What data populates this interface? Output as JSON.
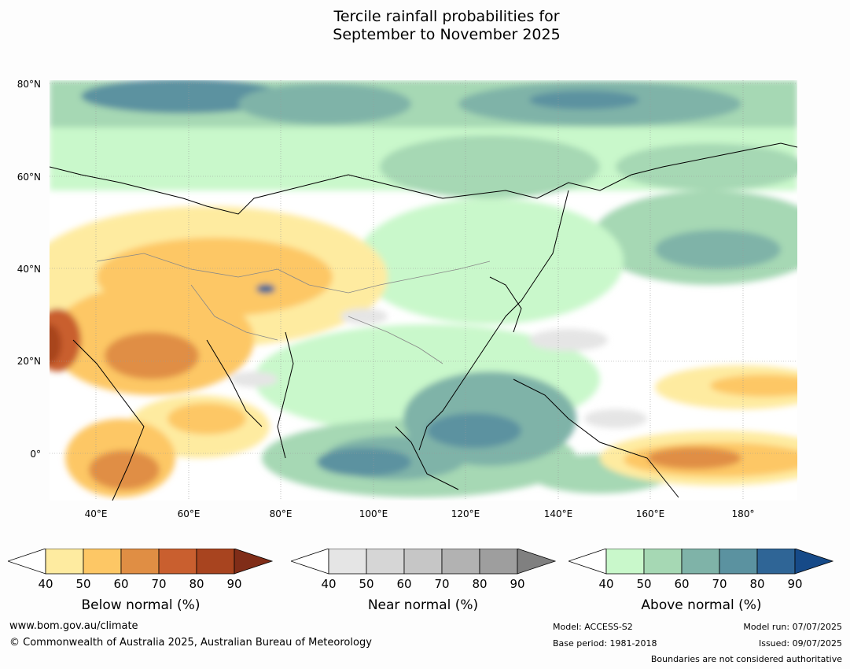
{
  "title": {
    "line1": "Tercile rainfall probabilities for",
    "line2": "September to November 2025"
  },
  "map": {
    "lat_labels": [
      "80°N",
      "60°N",
      "40°N",
      "20°N",
      "0°"
    ],
    "lon_labels": [
      "40°E",
      "60°E",
      "80°E",
      "100°E",
      "120°E",
      "140°E",
      "160°E",
      "180°"
    ]
  },
  "colorbars": [
    {
      "title": "Below normal (%)",
      "ticks": [
        "40",
        "50",
        "60",
        "70",
        "80",
        "90"
      ],
      "colors": [
        "#ffffff",
        "#feeba0",
        "#fdc765",
        "#e08e44",
        "#c95f2f",
        "#a8441f",
        "#802d18"
      ]
    },
    {
      "title": "Near normal (%)",
      "ticks": [
        "40",
        "50",
        "60",
        "70",
        "80",
        "90"
      ],
      "colors": [
        "#ffffff",
        "#e5e5e5",
        "#d6d6d6",
        "#c6c6c6",
        "#b2b2b2",
        "#9e9e9e",
        "#808080"
      ]
    },
    {
      "title": "Above normal (%)",
      "ticks": [
        "40",
        "50",
        "60",
        "70",
        "80",
        "90"
      ],
      "colors": [
        "#ffffff",
        "#c9f8cb",
        "#a6d8b4",
        "#7fb3a8",
        "#5b92a0",
        "#2f6596",
        "#164a88"
      ]
    }
  ],
  "footer": {
    "website": "www.bom.gov.au/climate",
    "copyright": "© Commonwealth of Australia 2025, Australian Bureau of Meteorology",
    "model": "Model: ACCESS-S2",
    "base_period": "Base period: 1981-2018",
    "model_run": "Model run: 07/07/2025",
    "issued": "Issued: 09/07/2025",
    "disclaimer": "Boundaries are not considered authoritative"
  }
}
